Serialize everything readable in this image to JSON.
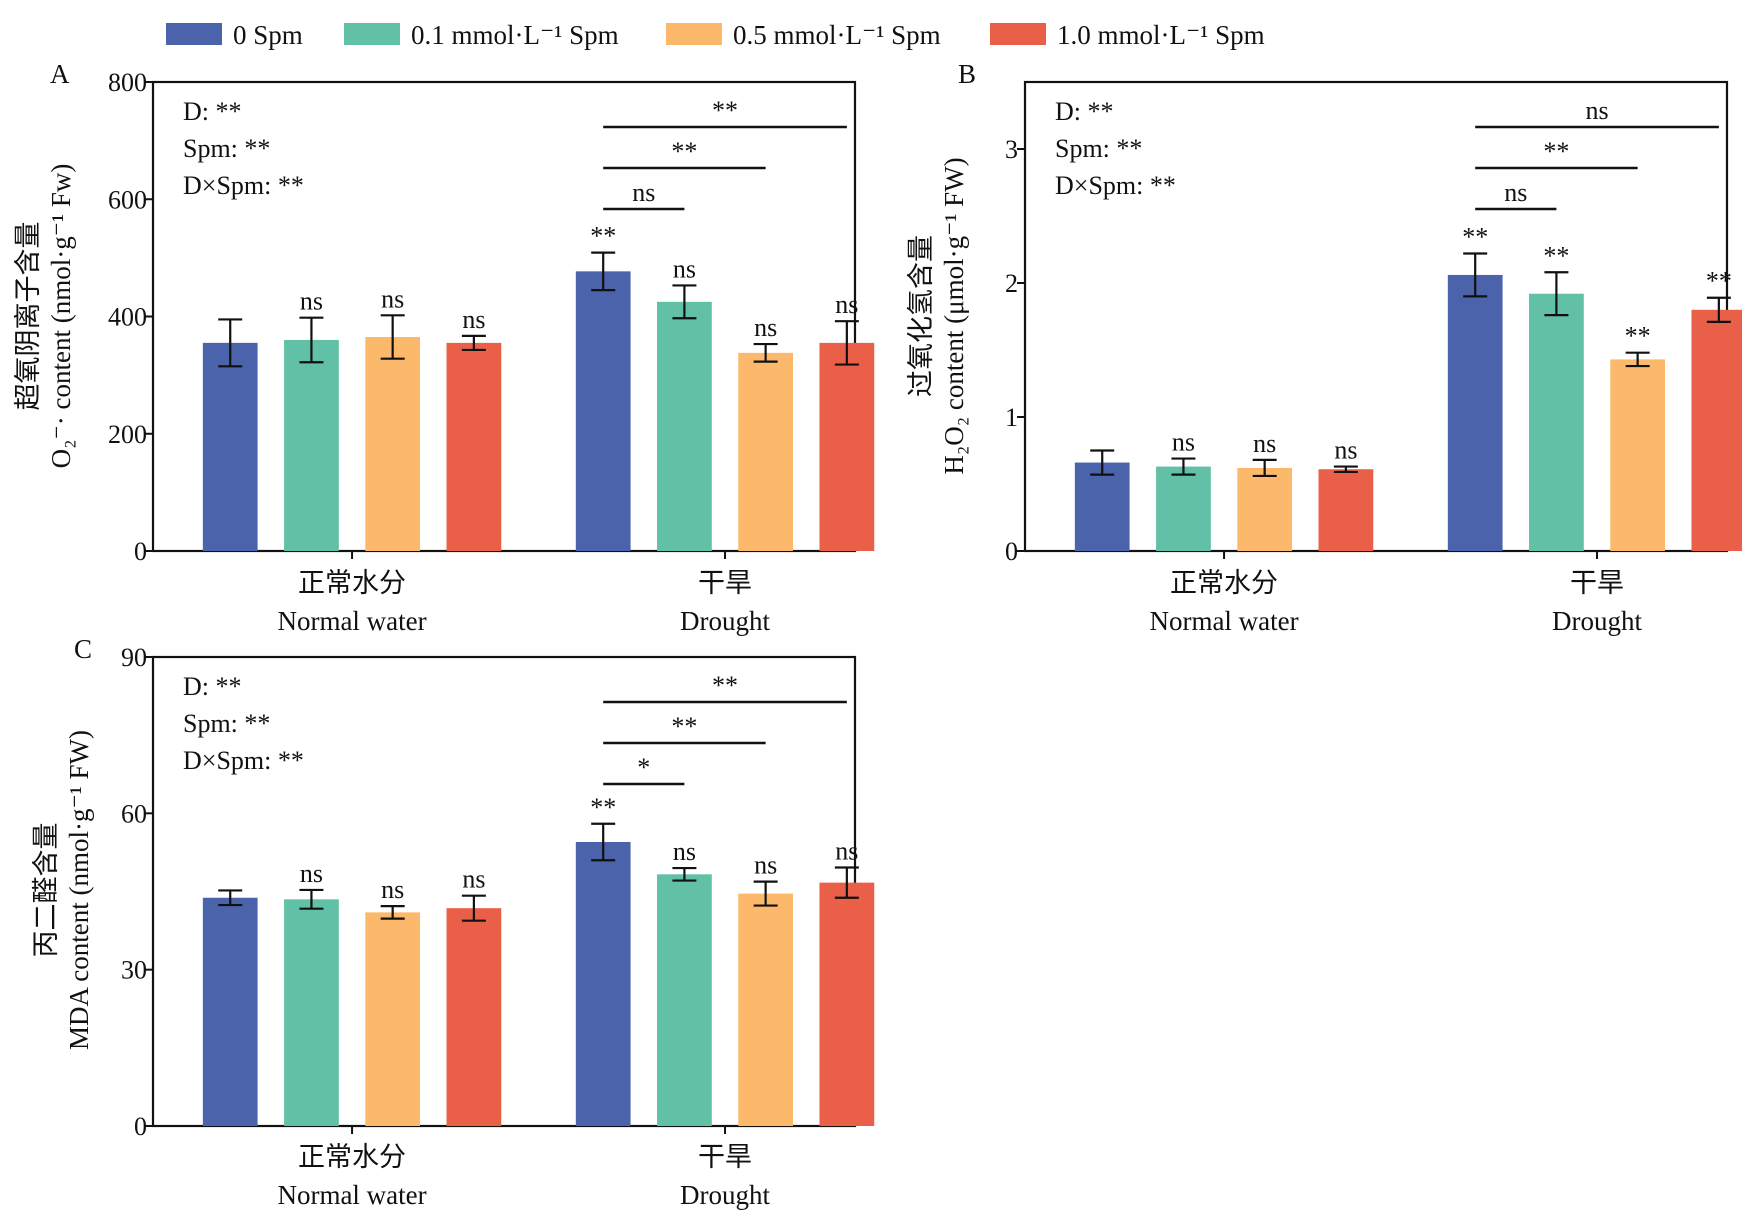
{
  "legend": [
    {
      "label": "0  Spm",
      "color": "#4a63ab"
    },
    {
      "label": "0.1 mmol·L⁻¹ Spm",
      "color": "#62c0a6"
    },
    {
      "label": "0.5 mmol·L⁻¹ Spm",
      "color": "#fdb96b"
    },
    {
      "label": "1.0 mmol·L⁻¹ Spm",
      "color": "#ea5f48"
    }
  ],
  "chart_data": [
    {
      "panel": "A",
      "type": "bar",
      "ylabel_cn": "超氧阴离子含量",
      "ylabel_en": "O₂⁻· content (nmol·g⁻¹ Fw)",
      "ylim": [
        0,
        800
      ],
      "yticks": [
        "0",
        "200",
        "400",
        "600",
        "800"
      ],
      "categories": [
        {
          "cn": "正常水分",
          "en": "Normal water"
        },
        {
          "cn": "干旱",
          "en": "Drought"
        }
      ],
      "series": [
        {
          "name": "0  Spm",
          "values": [
            355,
            477
          ],
          "errors": [
            40,
            32
          ],
          "marks": [
            "",
            "**"
          ]
        },
        {
          "name": "0.1 mmol·L⁻¹ Spm",
          "values": [
            360,
            425
          ],
          "errors": [
            38,
            28
          ],
          "marks": [
            "ns",
            "ns"
          ]
        },
        {
          "name": "0.5 mmol·L⁻¹ Spm",
          "values": [
            365,
            338
          ],
          "errors": [
            37,
            15
          ],
          "marks": [
            "ns",
            "ns"
          ]
        },
        {
          "name": "1.0 mmol·L⁻¹ Spm",
          "values": [
            355,
            355
          ],
          "errors": [
            12,
            37
          ],
          "marks": [
            "ns",
            "ns"
          ]
        }
      ],
      "stats": [
        "D: **",
        "Spm: **",
        "D×Spm: **"
      ],
      "brackets": [
        {
          "to_series": 1,
          "label": "ns"
        },
        {
          "to_series": 2,
          "label": "**"
        },
        {
          "to_series": 3,
          "label": "**"
        }
      ]
    },
    {
      "panel": "B",
      "type": "bar",
      "ylabel_cn": "过氧化氢含量",
      "ylabel_en": "H₂O₂ content (μmol·g⁻¹ FW)",
      "ylim": [
        0,
        3.5
      ],
      "yticks": [
        "0",
        "1",
        "2",
        "3"
      ],
      "categories": [
        {
          "cn": "正常水分",
          "en": "Normal water"
        },
        {
          "cn": "干旱",
          "en": "Drought"
        }
      ],
      "series": [
        {
          "name": "0  Spm",
          "values": [
            0.66,
            2.06
          ],
          "errors": [
            0.09,
            0.16
          ],
          "marks": [
            "",
            "**"
          ]
        },
        {
          "name": "0.1 mmol·L⁻¹ Spm",
          "values": [
            0.63,
            1.92
          ],
          "errors": [
            0.06,
            0.16
          ],
          "marks": [
            "ns",
            "**"
          ]
        },
        {
          "name": "0.5 mmol·L⁻¹ Spm",
          "values": [
            0.62,
            1.43
          ],
          "errors": [
            0.06,
            0.05
          ],
          "marks": [
            "ns",
            "**"
          ]
        },
        {
          "name": "1.0 mmol·L⁻¹ Spm",
          "values": [
            0.61,
            1.8
          ],
          "errors": [
            0.02,
            0.09
          ],
          "marks": [
            "ns",
            "**"
          ]
        }
      ],
      "stats": [
        "D: **",
        "Spm: **",
        "D×Spm: **"
      ],
      "brackets": [
        {
          "to_series": 1,
          "label": "ns"
        },
        {
          "to_series": 2,
          "label": "**"
        },
        {
          "to_series": 3,
          "label": "ns"
        }
      ]
    },
    {
      "panel": "C",
      "type": "bar",
      "ylabel_cn": "丙二醛含量",
      "ylabel_en": "MDA content (nmol·g⁻¹ FW)",
      "ylim": [
        0,
        90
      ],
      "yticks": [
        "0",
        "30",
        "60",
        "90"
      ],
      "categories": [
        {
          "cn": "正常水分",
          "en": "Normal water"
        },
        {
          "cn": "干旱",
          "en": "Drought"
        }
      ],
      "series": [
        {
          "name": "0  Spm",
          "values": [
            43.8,
            54.5
          ],
          "errors": [
            1.4,
            3.5
          ],
          "marks": [
            "",
            "**"
          ]
        },
        {
          "name": "0.1 mmol·L⁻¹ Spm",
          "values": [
            43.5,
            48.3
          ],
          "errors": [
            1.8,
            1.2
          ],
          "marks": [
            "ns",
            "ns"
          ]
        },
        {
          "name": "0.5 mmol·L⁻¹ Spm",
          "values": [
            41.0,
            44.6
          ],
          "errors": [
            1.2,
            2.3
          ],
          "marks": [
            "ns",
            "ns"
          ]
        },
        {
          "name": "1.0 mmol·L⁻¹ Spm",
          "values": [
            41.8,
            46.7
          ],
          "errors": [
            2.4,
            2.9
          ],
          "marks": [
            "ns",
            "ns"
          ]
        }
      ],
      "stats": [
        "D: **",
        "Spm: **",
        "D×Spm: **"
      ],
      "brackets": [
        {
          "to_series": 1,
          "label": "*"
        },
        {
          "to_series": 2,
          "label": "**"
        },
        {
          "to_series": 3,
          "label": "**"
        }
      ]
    }
  ]
}
